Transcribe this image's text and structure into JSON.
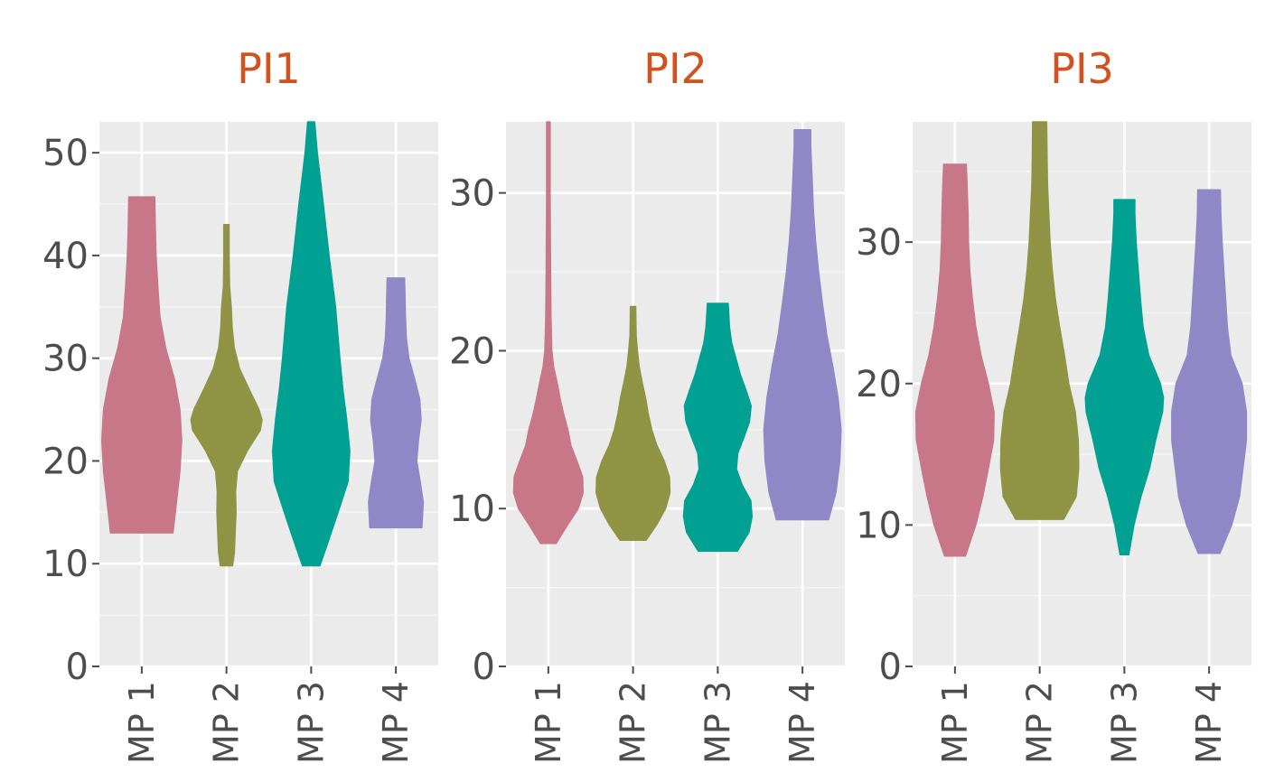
{
  "colors": {
    "panel_background": "#ebebeb",
    "grid_major": "#ffffff",
    "grid_minor": "#f5f5f5",
    "tick": "#4d4d4d",
    "title": "#d2521f",
    "series": {
      "MP 1": "#c77787",
      "MP 2": "#8e9444",
      "MP 3": "#00a192",
      "MP 4": "#9088c6"
    }
  },
  "chart_data": [
    {
      "type": "violin",
      "title": "PI1",
      "categories": [
        "MP 1",
        "MP 2",
        "MP 3",
        "MP 4"
      ],
      "ylim": [
        0,
        53
      ],
      "yticks": [
        0,
        10,
        20,
        30,
        40,
        50
      ],
      "grid": true,
      "series": [
        {
          "category": "MP 1",
          "min": 13,
          "max": 45.7,
          "density": [
            [
              13,
              0.72
            ],
            [
              16,
              0.8
            ],
            [
              19,
              0.88
            ],
            [
              22,
              0.92
            ],
            [
              25,
              0.88
            ],
            [
              28,
              0.75
            ],
            [
              31,
              0.55
            ],
            [
              34,
              0.42
            ],
            [
              37,
              0.37
            ],
            [
              40,
              0.33
            ],
            [
              43,
              0.31
            ],
            [
              45.7,
              0.3
            ]
          ]
        },
        {
          "category": "MP 2",
          "min": 9.8,
          "max": 43,
          "density": [
            [
              9.8,
              0.14
            ],
            [
              11,
              0.18
            ],
            [
              13,
              0.2
            ],
            [
              15,
              0.22
            ],
            [
              17,
              0.21
            ],
            [
              19,
              0.25
            ],
            [
              21,
              0.48
            ],
            [
              23,
              0.78
            ],
            [
              24,
              0.82
            ],
            [
              25,
              0.75
            ],
            [
              27,
              0.52
            ],
            [
              29,
              0.3
            ],
            [
              31,
              0.18
            ],
            [
              33,
              0.13
            ],
            [
              35,
              0.11
            ],
            [
              37,
              0.07
            ],
            [
              40,
              0.06
            ],
            [
              43,
              0.06
            ]
          ]
        },
        {
          "category": "MP 3",
          "min": 9.8,
          "max": 53,
          "density": [
            [
              9.8,
              0.2
            ],
            [
              12,
              0.38
            ],
            [
              15,
              0.62
            ],
            [
              18,
              0.85
            ],
            [
              21,
              0.89
            ],
            [
              24,
              0.82
            ],
            [
              27,
              0.73
            ],
            [
              30,
              0.66
            ],
            [
              35,
              0.56
            ],
            [
              40,
              0.41
            ],
            [
              45,
              0.28
            ],
            [
              50,
              0.14
            ],
            [
              53,
              0.08
            ]
          ]
        },
        {
          "category": "MP 4",
          "min": 13.5,
          "max": 37.8,
          "density": [
            [
              13.5,
              0.6
            ],
            [
              16,
              0.63
            ],
            [
              18,
              0.56
            ],
            [
              20,
              0.48
            ],
            [
              22,
              0.52
            ],
            [
              24,
              0.58
            ],
            [
              26,
              0.55
            ],
            [
              28,
              0.43
            ],
            [
              30,
              0.3
            ],
            [
              32,
              0.24
            ],
            [
              34,
              0.22
            ],
            [
              36,
              0.21
            ],
            [
              37.8,
              0.2
            ]
          ]
        }
      ]
    },
    {
      "type": "violin",
      "title": "PI2",
      "categories": [
        "MP 1",
        "MP 2",
        "MP 3",
        "MP 4"
      ],
      "ylim": [
        0,
        34.5
      ],
      "yticks": [
        0,
        10,
        20,
        30
      ],
      "grid": true,
      "series": [
        {
          "category": "MP 1",
          "min": 7.8,
          "max": 34.5,
          "density": [
            [
              7.8,
              0.18
            ],
            [
              9,
              0.45
            ],
            [
              10,
              0.69
            ],
            [
              11,
              0.8
            ],
            [
              12,
              0.79
            ],
            [
              13,
              0.66
            ],
            [
              14,
              0.52
            ],
            [
              15,
              0.45
            ],
            [
              16,
              0.35
            ],
            [
              17,
              0.27
            ],
            [
              18,
              0.2
            ],
            [
              19,
              0.12
            ],
            [
              20,
              0.08
            ],
            [
              22,
              0.06
            ],
            [
              25,
              0.05
            ],
            [
              30,
              0.04
            ],
            [
              34.5,
              0.04
            ]
          ]
        },
        {
          "category": "MP 2",
          "min": 8,
          "max": 22.8,
          "density": [
            [
              8,
              0.3
            ],
            [
              9,
              0.55
            ],
            [
              10,
              0.75
            ],
            [
              11,
              0.85
            ],
            [
              12,
              0.84
            ],
            [
              13,
              0.72
            ],
            [
              14,
              0.55
            ],
            [
              15,
              0.43
            ],
            [
              16,
              0.35
            ],
            [
              17,
              0.29
            ],
            [
              18,
              0.21
            ],
            [
              19,
              0.14
            ],
            [
              20,
              0.1
            ],
            [
              21,
              0.07
            ],
            [
              22.8,
              0.06
            ]
          ]
        },
        {
          "category": "MP 3",
          "min": 7.3,
          "max": 23,
          "density": [
            [
              7.3,
              0.45
            ],
            [
              8.5,
              0.72
            ],
            [
              9.5,
              0.79
            ],
            [
              10.5,
              0.76
            ],
            [
              11.5,
              0.56
            ],
            [
              12.5,
              0.43
            ],
            [
              13.5,
              0.46
            ],
            [
              14.5,
              0.6
            ],
            [
              15.5,
              0.73
            ],
            [
              16.5,
              0.77
            ],
            [
              17.5,
              0.65
            ],
            [
              18.5,
              0.52
            ],
            [
              19.5,
              0.42
            ],
            [
              20.5,
              0.32
            ],
            [
              21.5,
              0.27
            ],
            [
              23,
              0.24
            ]
          ]
        },
        {
          "category": "MP 4",
          "min": 9.3,
          "max": 34,
          "density": [
            [
              9.3,
              0.6
            ],
            [
              11,
              0.77
            ],
            [
              13,
              0.86
            ],
            [
              15,
              0.89
            ],
            [
              17,
              0.82
            ],
            [
              19,
              0.7
            ],
            [
              21,
              0.56
            ],
            [
              23,
              0.46
            ],
            [
              25,
              0.37
            ],
            [
              27,
              0.3
            ],
            [
              29,
              0.25
            ],
            [
              31,
              0.22
            ],
            [
              33,
              0.19
            ],
            [
              34,
              0.19
            ]
          ]
        }
      ]
    },
    {
      "type": "violin",
      "title": "PI3",
      "categories": [
        "MP 1",
        "MP 2",
        "MP 3",
        "MP 4"
      ],
      "ylim": [
        0,
        38.5
      ],
      "yticks": [
        0,
        10,
        20,
        30
      ],
      "grid": true,
      "series": [
        {
          "category": "MP 1",
          "min": 7.8,
          "max": 35.5,
          "density": [
            [
              7.8,
              0.24
            ],
            [
              10,
              0.48
            ],
            [
              12,
              0.64
            ],
            [
              14,
              0.77
            ],
            [
              16,
              0.89
            ],
            [
              18,
              0.9
            ],
            [
              20,
              0.77
            ],
            [
              22,
              0.6
            ],
            [
              24,
              0.48
            ],
            [
              26,
              0.4
            ],
            [
              28,
              0.34
            ],
            [
              30,
              0.31
            ],
            [
              32,
              0.3
            ],
            [
              34,
              0.28
            ],
            [
              35.5,
              0.26
            ]
          ]
        },
        {
          "category": "MP 2",
          "min": 10.4,
          "max": 38.5,
          "density": [
            [
              10.4,
              0.55
            ],
            [
              12,
              0.84
            ],
            [
              14,
              0.9
            ],
            [
              16,
              0.89
            ],
            [
              18,
              0.82
            ],
            [
              20,
              0.67
            ],
            [
              22,
              0.57
            ],
            [
              24,
              0.46
            ],
            [
              26,
              0.36
            ],
            [
              28,
              0.29
            ],
            [
              30,
              0.24
            ],
            [
              32,
              0.21
            ],
            [
              34,
              0.18
            ],
            [
              36,
              0.17
            ],
            [
              38.5,
              0.16
            ]
          ]
        },
        {
          "category": "MP 3",
          "min": 7.9,
          "max": 33,
          "density": [
            [
              7.9,
              0.1
            ],
            [
              10,
              0.22
            ],
            [
              12,
              0.38
            ],
            [
              14,
              0.58
            ],
            [
              16,
              0.72
            ],
            [
              18,
              0.88
            ],
            [
              19,
              0.9
            ],
            [
              20,
              0.83
            ],
            [
              22,
              0.56
            ],
            [
              24,
              0.43
            ],
            [
              26,
              0.37
            ],
            [
              28,
              0.32
            ],
            [
              30,
              0.27
            ],
            [
              32,
              0.24
            ],
            [
              33,
              0.24
            ]
          ]
        },
        {
          "category": "MP 4",
          "min": 8,
          "max": 33.7,
          "density": [
            [
              8,
              0.25
            ],
            [
              10,
              0.52
            ],
            [
              12,
              0.7
            ],
            [
              14,
              0.78
            ],
            [
              16,
              0.86
            ],
            [
              18,
              0.86
            ],
            [
              20,
              0.76
            ],
            [
              22,
              0.5
            ],
            [
              24,
              0.42
            ],
            [
              26,
              0.38
            ],
            [
              28,
              0.34
            ],
            [
              30,
              0.3
            ],
            [
              32,
              0.27
            ],
            [
              33.7,
              0.26
            ]
          ]
        }
      ]
    }
  ]
}
